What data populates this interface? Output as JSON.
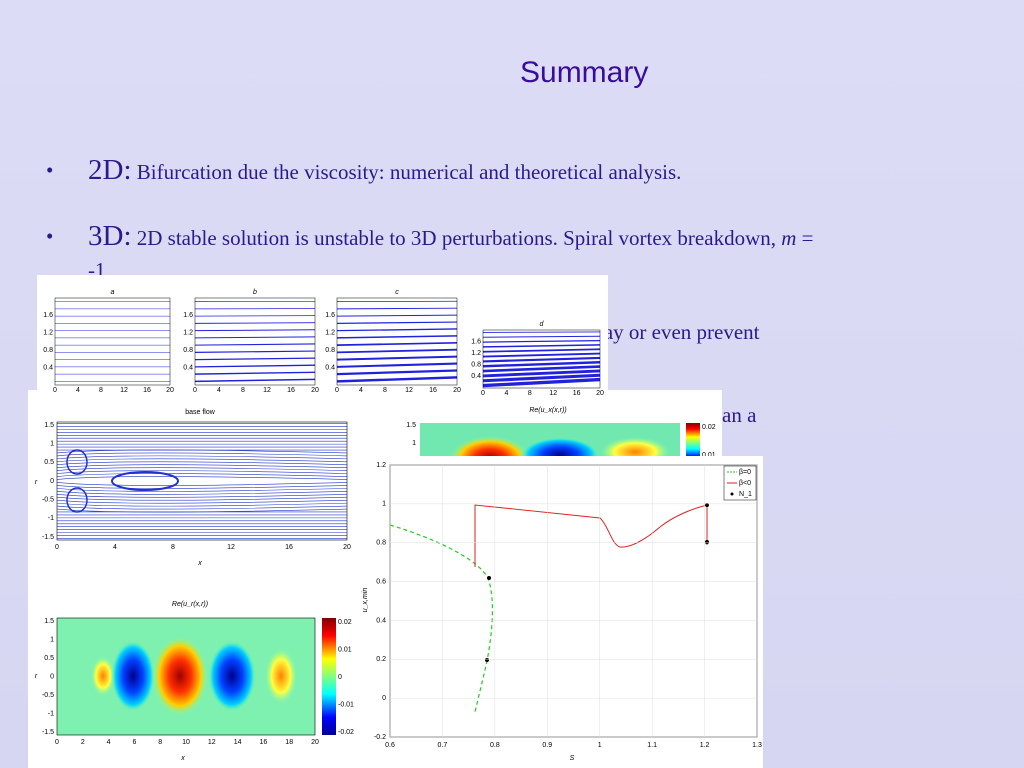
{
  "header": {
    "title": "Summary"
  },
  "bullets": [
    {
      "lead": "2D:",
      "text": "Bifurcation due the viscosity: numerical and theoretical analysis."
    },
    {
      "lead": "3D:",
      "text": "2D stable solution is unstable to 3D perturbations. Spiral vortex breakdown, ",
      "emph": "m",
      "tail": " = -1"
    }
  ],
  "hidden_fragments": [
    "lay or even prevent",
    "an a"
  ],
  "strip_figure": {
    "panels": [
      "a",
      "b",
      "c",
      "d"
    ],
    "yticks": [
      "1.6",
      "1.2",
      "0.8",
      "0.4"
    ],
    "xticks": [
      "0",
      "4",
      "8",
      "12",
      "16",
      "20"
    ]
  },
  "base_flow": {
    "title": "base flow",
    "xlabel": "x",
    "ylabel": "r",
    "yticks": [
      "1.5",
      "1",
      "0.5",
      "0",
      "-0.5",
      "-1",
      "-1.5"
    ],
    "xticks": [
      "0",
      "4",
      "8",
      "12",
      "16",
      "20"
    ]
  },
  "ur_map": {
    "title": "Re(u_r(x,r))",
    "xlabel": "x",
    "ylabel": "r",
    "yticks": [
      "1.5",
      "1",
      "0.5",
      "0",
      "-0.5",
      "-1",
      "-1.5"
    ],
    "xticks": [
      "0",
      "2",
      "4",
      "6",
      "8",
      "10",
      "12",
      "14",
      "16",
      "18",
      "20"
    ],
    "colorbar": [
      "0.02",
      "0.01",
      "0",
      "-0.01",
      "-0.02"
    ]
  },
  "ux_map": {
    "title": "Re(u_x(x,r))",
    "yticks": [
      "1.5",
      "1"
    ],
    "colorbar": [
      "0.02",
      "0.01"
    ]
  },
  "umin_plot": {
    "xlabel": "S",
    "ylabel": "u_x,min",
    "legend": [
      "β=0",
      "β<0",
      "N_1"
    ],
    "yticks": [
      "1.2",
      "1",
      "0.8",
      "0.6",
      "0.4",
      "0.2",
      "0",
      "-0.2"
    ],
    "xticks": [
      "0.6",
      "0.7",
      "0.8",
      "0.9",
      "1",
      "1.1",
      "1.2",
      "1.3"
    ]
  }
}
